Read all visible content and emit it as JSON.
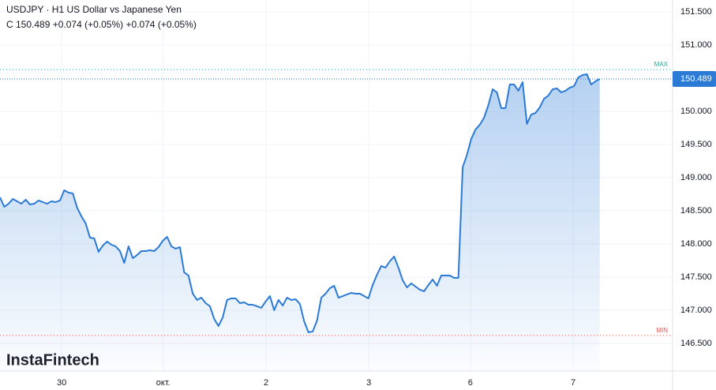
{
  "chart_data": {
    "type": "line",
    "title": "USDJPY · H1 US Dollar vs Japanese Yen",
    "subtitle": "C 150.489 +0.074 (+0.05%) +0.074 (+0.05%)",
    "watermark": "InstaFintech",
    "color": "#2a7ad6",
    "grid": true,
    "ylim": [
      146.083,
      151.679
    ],
    "yticks": [
      {
        "value": 146.5,
        "label": "146.500"
      },
      {
        "value": 147,
        "label": "147.000"
      },
      {
        "value": 147.5,
        "label": "147.500"
      },
      {
        "value": 148,
        "label": "148.000"
      },
      {
        "value": 148.5,
        "label": "148.500"
      },
      {
        "value": 149,
        "label": "149.000"
      },
      {
        "value": 149.5,
        "label": "149.500"
      },
      {
        "value": 150,
        "label": "150.000"
      },
      {
        "value": 151,
        "label": "151.000"
      },
      {
        "value": 151.5,
        "label": "151.500"
      }
    ],
    "xlim": [
      0,
      157
    ],
    "xticks": [
      {
        "value": 14.4,
        "label": "30"
      },
      {
        "value": 38.1,
        "label": "окт."
      },
      {
        "value": 62.1,
        "label": "2"
      },
      {
        "value": 86.1,
        "label": "3"
      },
      {
        "value": 109.8,
        "label": "6"
      },
      {
        "value": 133.8,
        "label": "7"
      }
    ],
    "last_price": 150.489,
    "max_line": {
      "label": "MAX",
      "value": 150.63,
      "color": "#26a69a"
    },
    "min_line": {
      "label": "MIN",
      "value": 146.62,
      "color": "#ef5350"
    },
    "values": [
      148.702,
      148.56,
      148.607,
      148.679,
      148.643,
      148.607,
      148.667,
      148.595,
      148.607,
      148.655,
      148.631,
      148.607,
      148.643,
      148.631,
      148.655,
      148.81,
      148.774,
      148.762,
      148.548,
      148.417,
      148.31,
      148.095,
      148.083,
      147.881,
      147.976,
      148.036,
      147.988,
      147.964,
      147.893,
      147.714,
      147.964,
      147.786,
      147.833,
      147.893,
      147.893,
      147.905,
      147.893,
      147.952,
      148.048,
      148.107,
      147.964,
      147.929,
      147.952,
      147.571,
      147.524,
      147.25,
      147.155,
      147.19,
      147.107,
      147.06,
      146.869,
      146.762,
      146.893,
      147.155,
      147.179,
      147.179,
      147.107,
      147.119,
      147.083,
      147.083,
      147.06,
      147.036,
      147.131,
      147.214,
      147.0,
      147.155,
      147.071,
      147.19,
      147.155,
      147.167,
      147.095,
      146.833,
      146.667,
      146.679,
      146.845,
      147.19,
      147.25,
      147.333,
      147.369,
      147.19,
      147.214,
      147.238,
      147.262,
      147.25,
      147.25,
      147.214,
      147.179,
      147.381,
      147.536,
      147.667,
      147.643,
      147.738,
      147.81,
      147.643,
      147.452,
      147.345,
      147.405,
      147.357,
      147.31,
      147.286,
      147.381,
      147.464,
      147.369,
      147.524,
      147.524,
      147.524,
      147.488,
      147.488,
      149.155,
      149.345,
      149.583,
      149.726,
      149.798,
      149.905,
      150.095,
      150.333,
      150.286,
      150.048,
      150.048,
      150.405,
      150.405,
      150.31,
      150.44,
      149.81,
      149.952,
      149.976,
      150.06,
      150.19,
      150.238,
      150.333,
      150.345,
      150.286,
      150.31,
      150.357,
      150.381,
      150.512,
      150.548,
      150.56,
      150.405,
      150.452,
      150.489
    ]
  }
}
